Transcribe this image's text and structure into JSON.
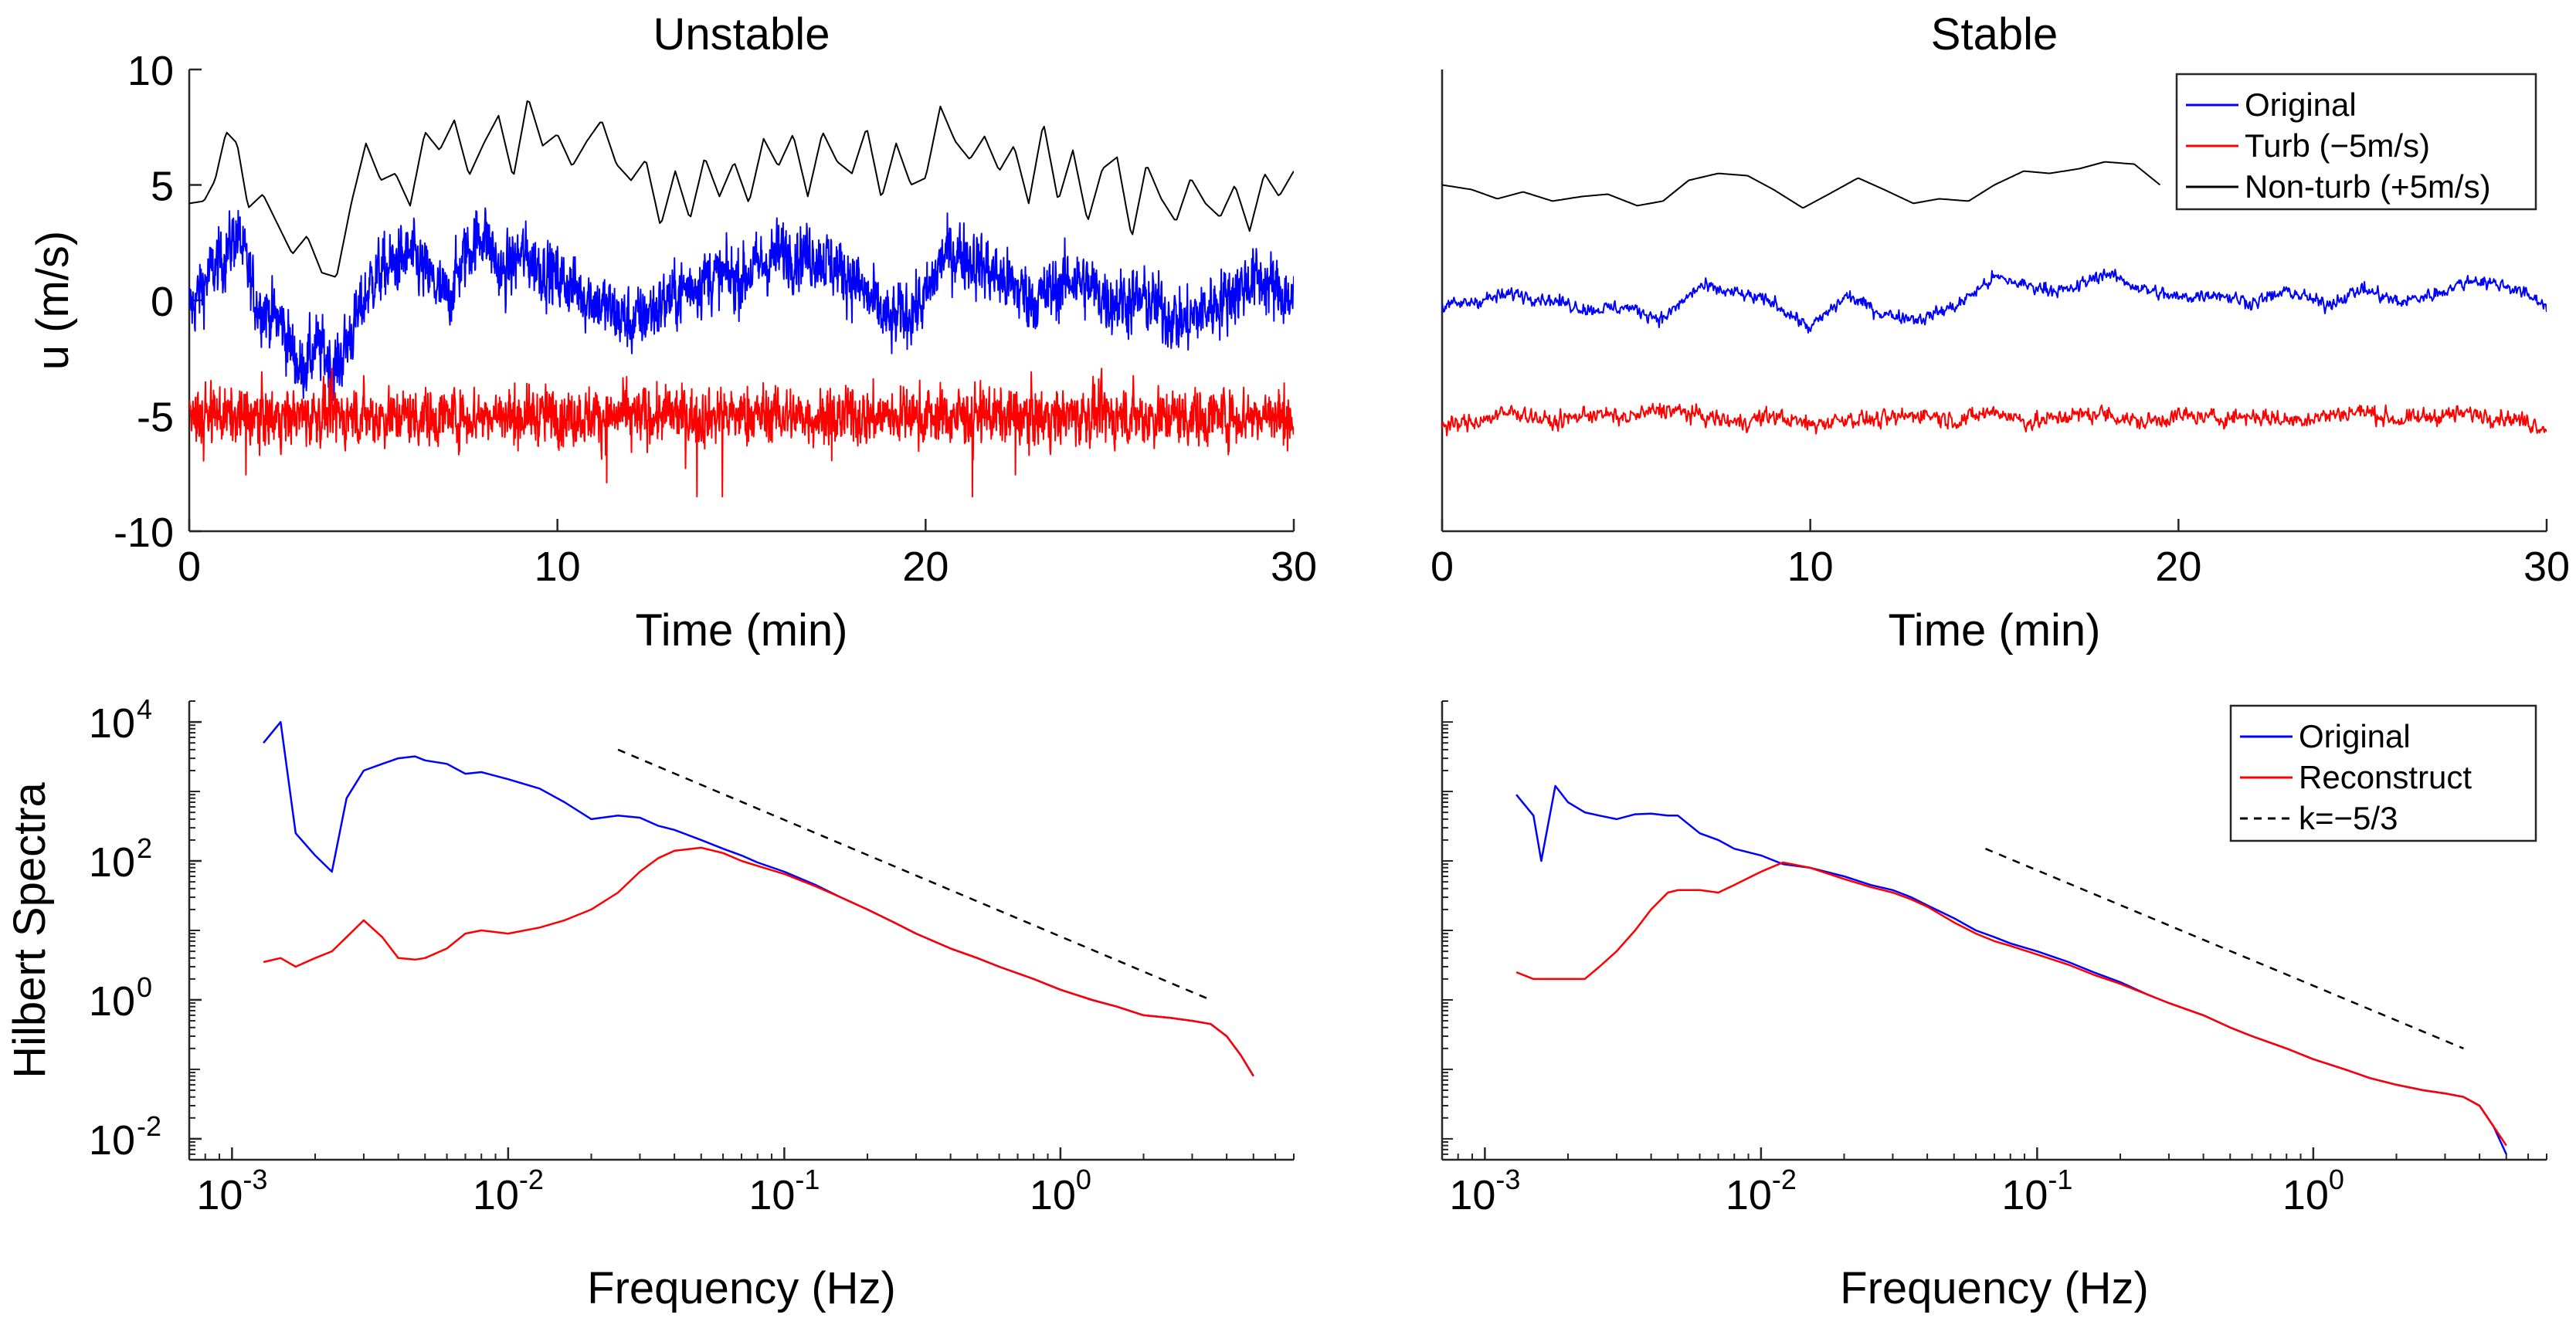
{
  "chart_data": [
    {
      "type": "line",
      "title": "Unstable",
      "xlabel": "Time (min)",
      "ylabel": "u (m/s)",
      "xlim": [
        0,
        30
      ],
      "ylim": [
        -10,
        10
      ],
      "x_ticks": [
        0,
        10,
        20,
        30
      ],
      "y_ticks": [
        -10,
        -5,
        0,
        5,
        10
      ],
      "series": [
        {
          "name": "Original",
          "color": "#0000ff",
          "x": [
            0,
            0.5,
            1,
            1.3,
            1.8,
            2.5,
            3,
            3.5,
            4,
            4.5,
            5,
            6,
            6.5,
            7,
            7.5,
            8,
            8.5,
            9,
            10,
            11,
            12,
            13,
            14,
            15,
            16,
            17,
            18,
            19,
            20,
            20.5,
            21,
            22,
            23,
            24,
            25,
            26,
            27,
            28,
            29,
            30
          ],
          "values": [
            -0.5,
            1,
            2,
            3,
            0,
            -1,
            -3,
            -2,
            -3,
            -1,
            1,
            2,
            1,
            0,
            2,
            3,
            1,
            2,
            1,
            0,
            -1,
            0,
            1,
            1,
            2,
            2,
            1,
            -1,
            0,
            2,
            2,
            1,
            0,
            1,
            0,
            0,
            -1,
            0,
            1,
            0
          ]
        },
        {
          "name": "Turb (−5m/s)",
          "color": "#ff0000",
          "x": [
            0,
            5,
            10,
            15,
            20,
            25,
            30
          ],
          "values": [
            -5,
            -5,
            -5,
            -5,
            -5,
            -5,
            -5
          ]
        },
        {
          "name": "Non-turb (+5m/s)",
          "color": "#000000",
          "x": [
            0,
            0.4,
            0.7,
            1.0,
            1.3,
            1.6,
            2.0,
            2.4,
            2.8,
            3.2,
            3.6,
            4.0,
            4.4,
            4.8,
            5.2,
            5.6,
            6.0,
            6.4,
            6.8,
            7.2,
            7.6,
            8.0,
            8.4,
            8.8,
            9.2,
            9.6,
            10.0,
            10.4,
            10.8,
            11.2,
            11.6,
            12.0,
            12.4,
            12.8,
            13.2,
            13.6,
            14.0,
            14.4,
            14.8,
            15.2,
            15.6,
            16.0,
            16.4,
            16.8,
            17.2,
            17.6,
            18.0,
            18.4,
            18.8,
            19.2,
            19.6,
            20.0,
            20.4,
            20.8,
            21.2,
            21.6,
            22.0,
            22.4,
            22.8,
            23.2,
            23.6,
            24.0,
            24.4,
            24.8,
            25.2,
            25.6,
            26.0,
            26.4,
            26.8,
            27.2,
            27.6,
            28.0,
            28.4,
            28.8,
            29.2,
            29.6,
            30.0
          ],
          "values": [
            4.2,
            4.3,
            5.2,
            7.3,
            6.8,
            4.0,
            4.6,
            3.3,
            2.0,
            2.8,
            1.2,
            1.0,
            4.2,
            6.8,
            5.2,
            5.5,
            4.1,
            7.3,
            6.5,
            7.8,
            5.4,
            6.8,
            8.0,
            5.3,
            8.8,
            6.7,
            7.2,
            5.8,
            6.9,
            7.8,
            5.9,
            5.2,
            6.1,
            3.2,
            5.6,
            3.5,
            6.2,
            4.5,
            6.0,
            4.2,
            7.0,
            5.8,
            7.2,
            4.5,
            7.3,
            6.0,
            5.5,
            7.5,
            4.4,
            6.8,
            5.0,
            5.3,
            8.4,
            6.9,
            6.1,
            7.1,
            5.6,
            6.7,
            4.2,
            7.7,
            4.3,
            6.5,
            3.4,
            5.7,
            6.2,
            2.7,
            5.9,
            4.4,
            3.4,
            5.3,
            4.2,
            3.6,
            5.0,
            3.0,
            5.5,
            4.5,
            5.6
          ]
        }
      ]
    },
    {
      "type": "line",
      "title": "Stable",
      "xlabel": "Time (min)",
      "ylabel": "",
      "xlim": [
        0,
        30
      ],
      "ylim": [
        -10,
        10
      ],
      "x_ticks": [
        0,
        10,
        20,
        30
      ],
      "y_ticks": [],
      "legend": {
        "position": "top-right",
        "entries": [
          "Original",
          "Turb (−5m/s)",
          "Non-turb (+5m/s)"
        ]
      },
      "series": [
        {
          "name": "Original",
          "color": "#0000ff",
          "x": [
            0,
            1,
            2,
            3,
            4,
            5,
            6,
            7,
            8,
            9,
            10,
            11,
            12,
            13,
            14,
            15,
            16,
            17,
            18,
            19,
            20,
            21,
            22,
            23,
            24,
            25,
            26,
            27,
            28,
            29,
            30
          ],
          "values": [
            -0.3,
            0,
            0.3,
            0,
            -0.4,
            -0.3,
            -0.8,
            0.6,
            0.3,
            -0.1,
            -1.2,
            0.2,
            -0.6,
            -0.8,
            -0.2,
            1.0,
            0.6,
            0.4,
            1.2,
            0.5,
            0.1,
            0.3,
            -0.1,
            0.4,
            -0.2,
            0.5,
            -0.1,
            0.3,
            0.9,
            0.6,
            -0.2
          ]
        },
        {
          "name": "Turb (−5m/s)",
          "color": "#ff0000",
          "x": [
            0,
            1,
            2,
            3,
            4,
            5,
            6,
            7,
            8,
            9,
            10,
            11,
            12,
            13,
            14,
            15,
            16,
            17,
            18,
            19,
            20,
            21,
            22,
            23,
            24,
            25,
            26,
            27,
            28,
            29,
            30
          ],
          "values": [
            -5.5,
            -5.2,
            -4.8,
            -5.3,
            -4.9,
            -5.1,
            -4.7,
            -5.0,
            -5.3,
            -5.0,
            -5.4,
            -5.1,
            -5.2,
            -4.9,
            -5.2,
            -4.8,
            -5.3,
            -5.0,
            -4.9,
            -5.3,
            -5.0,
            -5.1,
            -5.0,
            -5.2,
            -5.0,
            -4.8,
            -5.2,
            -5.0,
            -4.9,
            -5.1,
            -5.5
          ]
        },
        {
          "name": "Non-turb (+5m/s)",
          "color": "#000000",
          "x": [
            0,
            0.8,
            1.5,
            2.2,
            3.0,
            3.8,
            4.5,
            5.3,
            6.0,
            6.7,
            7.5,
            8.3,
            9.0,
            9.8,
            10.5,
            11.3,
            12.0,
            12.8,
            13.5,
            14.3,
            15.0,
            15.8,
            16.5,
            17.3,
            18.0,
            18.8,
            19.5
          ],
          "values": [
            5.0,
            4.8,
            4.4,
            4.7,
            4.3,
            4.5,
            4.6,
            4.1,
            4.3,
            5.2,
            5.5,
            5.4,
            4.8,
            4.0,
            4.6,
            5.3,
            4.8,
            4.2,
            4.4,
            4.3,
            5.0,
            5.6,
            5.5,
            5.7,
            6.0,
            5.9,
            5.0
          ]
        }
      ]
    },
    {
      "type": "line",
      "title": "",
      "xlabel": "Frequency (Hz)",
      "ylabel": "Hilbert Spectra",
      "xscale": "log",
      "yscale": "log",
      "xlim": [
        0.0007,
        7
      ],
      "ylim": [
        0.005,
        20000
      ],
      "x_ticks": [
        {
          "base": "10",
          "exp": "-3",
          "value": 0.001
        },
        {
          "base": "10",
          "exp": "-2",
          "value": 0.01
        },
        {
          "base": "10",
          "exp": "-1",
          "value": 0.1
        },
        {
          "base": "10",
          "exp": "0",
          "value": 1
        }
      ],
      "y_ticks": [
        {
          "base": "10",
          "exp": "-2",
          "value": 0.01
        },
        {
          "base": "10",
          "exp": "0",
          "value": 1
        },
        {
          "base": "10",
          "exp": "2",
          "value": 100
        },
        {
          "base": "10",
          "exp": "4",
          "value": 10000
        }
      ],
      "series": [
        {
          "name": "Original",
          "color": "#0000ff",
          "x": [
            0.0013,
            0.0015,
            0.0017,
            0.002,
            0.0023,
            0.0026,
            0.003,
            0.0035,
            0.004,
            0.0046,
            0.005,
            0.006,
            0.007,
            0.008,
            0.01,
            0.013,
            0.016,
            0.02,
            0.025,
            0.03,
            0.035,
            0.04,
            0.05,
            0.06,
            0.07,
            0.08,
            0.1,
            0.13,
            0.16,
            0.2,
            0.25,
            0.3,
            0.4,
            0.5,
            0.6,
            0.8,
            1.0,
            1.3,
            1.6,
            2.0,
            2.5,
            3.0,
            3.5,
            4.0,
            4.5,
            5.0
          ],
          "values": [
            5000,
            10000,
            250,
            120,
            70,
            800,
            2000,
            2500,
            3000,
            3200,
            2800,
            2500,
            1800,
            1900,
            1500,
            1100,
            700,
            400,
            450,
            420,
            320,
            280,
            200,
            150,
            120,
            95,
            70,
            45,
            30,
            20,
            13,
            9,
            5.5,
            4,
            3,
            2,
            1.4,
            1,
            0.8,
            0.6,
            0.55,
            0.5,
            0.45,
            0.3,
            0.16,
            0.08
          ]
        },
        {
          "name": "Reconstruct",
          "color": "#ff0000",
          "x": [
            0.0013,
            0.0015,
            0.0017,
            0.002,
            0.0023,
            0.0026,
            0.003,
            0.0035,
            0.004,
            0.0046,
            0.005,
            0.006,
            0.007,
            0.008,
            0.01,
            0.013,
            0.016,
            0.02,
            0.025,
            0.03,
            0.035,
            0.04,
            0.05,
            0.06,
            0.07,
            0.08,
            0.1,
            0.13,
            0.16,
            0.2,
            0.25,
            0.3,
            0.4,
            0.5,
            0.6,
            0.8,
            1.0,
            1.3,
            1.6,
            2.0,
            2.5,
            3.0,
            3.5,
            4.0,
            4.5,
            5.0
          ],
          "values": [
            3.5,
            4,
            3,
            4,
            5,
            8,
            14,
            8,
            4,
            3.8,
            4,
            5.5,
            9,
            10,
            9,
            11,
            14,
            20,
            35,
            70,
            110,
            140,
            155,
            130,
            100,
            85,
            65,
            43,
            30,
            20,
            13,
            9,
            5.5,
            4,
            3,
            2,
            1.4,
            1,
            0.8,
            0.6,
            0.55,
            0.5,
            0.45,
            0.3,
            0.16,
            0.08
          ]
        },
        {
          "name": "k=−5/3",
          "color": "#000000",
          "dash": true,
          "x": [
            0.025,
            3.5
          ],
          "values": [
            4000,
            1.0
          ]
        }
      ]
    },
    {
      "type": "line",
      "title": "",
      "xlabel": "Frequency (Hz)",
      "ylabel": "",
      "xscale": "log",
      "yscale": "log",
      "xlim": [
        0.0007,
        7
      ],
      "ylim": [
        0.005,
        20000
      ],
      "x_ticks": [
        {
          "base": "10",
          "exp": "-3",
          "value": 0.001
        },
        {
          "base": "10",
          "exp": "-2",
          "value": 0.01
        },
        {
          "base": "10",
          "exp": "-1",
          "value": 0.1
        },
        {
          "base": "10",
          "exp": "0",
          "value": 1
        }
      ],
      "y_ticks": [],
      "legend": {
        "position": "top-right",
        "entries": [
          "Original",
          "Reconstruct",
          "k=−5/3"
        ]
      },
      "series": [
        {
          "name": "Original",
          "color": "#0000ff",
          "x": [
            0.0013,
            0.0015,
            0.0016,
            0.0018,
            0.002,
            0.0023,
            0.0026,
            0.003,
            0.0035,
            0.004,
            0.0046,
            0.005,
            0.006,
            0.007,
            0.008,
            0.01,
            0.012,
            0.015,
            0.02,
            0.025,
            0.03,
            0.035,
            0.04,
            0.05,
            0.06,
            0.07,
            0.08,
            0.1,
            0.13,
            0.16,
            0.2,
            0.25,
            0.3,
            0.4,
            0.5,
            0.6,
            0.8,
            1.0,
            1.3,
            1.6,
            2.0,
            2.5,
            3.0,
            3.5,
            4.0,
            4.5,
            5.0
          ],
          "values": [
            900,
            450,
            100,
            1200,
            700,
            500,
            450,
            400,
            470,
            480,
            450,
            450,
            250,
            200,
            150,
            120,
            90,
            80,
            60,
            45,
            38,
            30,
            23,
            15,
            10,
            8,
            6.5,
            5,
            3.5,
            2.5,
            1.8,
            1.2,
            0.9,
            0.6,
            0.4,
            0.3,
            0.2,
            0.14,
            0.1,
            0.075,
            0.06,
            0.05,
            0.045,
            0.04,
            0.03,
            0.015,
            0.006
          ]
        },
        {
          "name": "Reconstruct",
          "color": "#ff0000",
          "x": [
            0.0013,
            0.0015,
            0.0016,
            0.0018,
            0.002,
            0.0023,
            0.0026,
            0.003,
            0.0035,
            0.004,
            0.0046,
            0.005,
            0.006,
            0.007,
            0.008,
            0.01,
            0.012,
            0.015,
            0.02,
            0.025,
            0.03,
            0.035,
            0.04,
            0.05,
            0.06,
            0.07,
            0.08,
            0.1,
            0.13,
            0.16,
            0.2,
            0.25,
            0.3,
            0.4,
            0.5,
            0.6,
            0.8,
            1.0,
            1.3,
            1.6,
            2.0,
            2.5,
            3.0,
            3.5,
            4.0,
            4.5,
            5.0
          ],
          "values": [
            2.5,
            2,
            2,
            2,
            2,
            2,
            3,
            5,
            10,
            20,
            35,
            38,
            38,
            35,
            45,
            70,
            95,
            80,
            55,
            42,
            35,
            28,
            22,
            13,
            9,
            7,
            6,
            4.5,
            3.2,
            2.3,
            1.7,
            1.2,
            0.9,
            0.6,
            0.4,
            0.3,
            0.2,
            0.14,
            0.1,
            0.075,
            0.06,
            0.05,
            0.045,
            0.04,
            0.03,
            0.015,
            0.008
          ]
        },
        {
          "name": "k=−5/3",
          "color": "#000000",
          "dash": true,
          "x": [
            0.065,
            3.5
          ],
          "values": [
            150,
            0.2
          ]
        }
      ]
    }
  ]
}
